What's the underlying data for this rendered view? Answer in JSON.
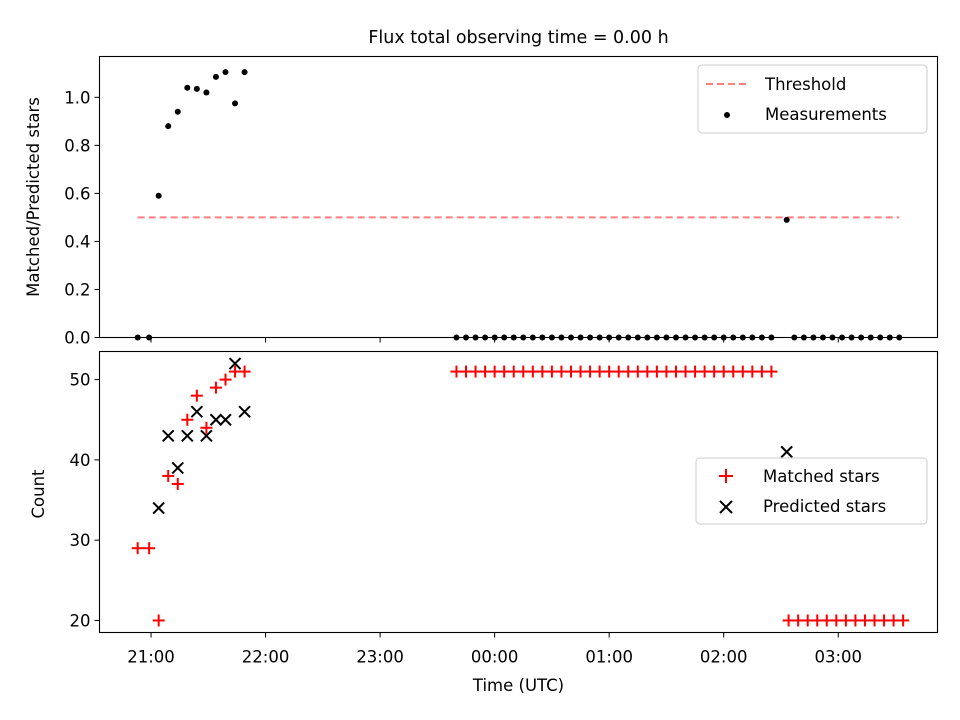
{
  "figure": {
    "title": "Flux total observing time = 0.00 h"
  },
  "chart_data": [
    {
      "type": "scatter",
      "panel": "top",
      "ylabel": "Matched/Predicted stars",
      "ylim": [
        0,
        1.17
      ],
      "yticks": [
        0.0,
        0.2,
        0.4,
        0.6,
        0.8,
        1.0
      ],
      "ytick_labels": [
        "0.0",
        "0.2",
        "0.4",
        "0.6",
        "0.8",
        "1.0"
      ],
      "legend_position": "top-right",
      "threshold": {
        "name": "Threshold",
        "value": 0.5,
        "x_start": "20:53",
        "x_end": "03:32",
        "color": "#ff7f7f",
        "style": "dashed"
      },
      "series": [
        {
          "name": "Measurements",
          "color": "#000000",
          "marker": "dot",
          "points": [
            [
              "20:53",
              0.0
            ],
            [
              "20:59",
              0.0
            ],
            [
              "21:04",
              0.59
            ],
            [
              "21:09",
              0.88
            ],
            [
              "21:14",
              0.94
            ],
            [
              "21:19",
              1.04
            ],
            [
              "21:24",
              1.035
            ],
            [
              "21:29",
              1.02
            ],
            [
              "21:34",
              1.085
            ],
            [
              "21:39",
              1.105
            ],
            [
              "21:44",
              0.975
            ],
            [
              "21:49",
              1.105
            ],
            [
              "23:40",
              0.0
            ],
            [
              "23:45",
              0.0
            ],
            [
              "23:50",
              0.0
            ],
            [
              "23:55",
              0.0
            ],
            [
              "00:00",
              0.0
            ],
            [
              "00:05",
              0.0
            ],
            [
              "00:10",
              0.0
            ],
            [
              "00:15",
              0.0
            ],
            [
              "00:20",
              0.0
            ],
            [
              "00:25",
              0.0
            ],
            [
              "00:30",
              0.0
            ],
            [
              "00:35",
              0.0
            ],
            [
              "00:40",
              0.0
            ],
            [
              "00:45",
              0.0
            ],
            [
              "00:50",
              0.0
            ],
            [
              "00:55",
              0.0
            ],
            [
              "01:00",
              0.0
            ],
            [
              "01:05",
              0.0
            ],
            [
              "01:10",
              0.0
            ],
            [
              "01:15",
              0.0
            ],
            [
              "01:20",
              0.0
            ],
            [
              "01:25",
              0.0
            ],
            [
              "01:30",
              0.0
            ],
            [
              "01:35",
              0.0
            ],
            [
              "01:40",
              0.0
            ],
            [
              "01:45",
              0.0
            ],
            [
              "01:50",
              0.0
            ],
            [
              "01:55",
              0.0
            ],
            [
              "02:00",
              0.0
            ],
            [
              "02:05",
              0.0
            ],
            [
              "02:10",
              0.0
            ],
            [
              "02:15",
              0.0
            ],
            [
              "02:20",
              0.0
            ],
            [
              "02:25",
              0.0
            ],
            [
              "02:33",
              0.49
            ],
            [
              "02:37",
              0.0
            ],
            [
              "02:42",
              0.0
            ],
            [
              "02:47",
              0.0
            ],
            [
              "02:52",
              0.0
            ],
            [
              "02:57",
              0.0
            ],
            [
              "03:02",
              0.0
            ],
            [
              "03:07",
              0.0
            ],
            [
              "03:12",
              0.0
            ],
            [
              "03:17",
              0.0
            ],
            [
              "03:22",
              0.0
            ],
            [
              "03:27",
              0.0
            ],
            [
              "03:32",
              0.0
            ]
          ]
        }
      ]
    },
    {
      "type": "scatter",
      "panel": "bottom",
      "xlabel": "Time (UTC)",
      "ylabel": "Count",
      "ylim": [
        18.5,
        53.5
      ],
      "yticks": [
        20,
        30,
        40,
        50
      ],
      "ytick_labels": [
        "20",
        "30",
        "40",
        "50"
      ],
      "xlim": [
        "20:33",
        "03:52"
      ],
      "xticks": [
        "21:00",
        "22:00",
        "23:00",
        "00:00",
        "01:00",
        "02:00",
        "03:00"
      ],
      "xtick_labels": [
        "21:00",
        "22:00",
        "23:00",
        "00:00",
        "01:00",
        "02:00",
        "03:00"
      ],
      "legend_position": "center-right",
      "series": [
        {
          "name": "Matched stars",
          "color": "#ff0000",
          "marker": "plus",
          "points": [
            [
              "20:53",
              29
            ],
            [
              "20:59",
              29
            ],
            [
              "21:04",
              20
            ],
            [
              "21:09",
              38
            ],
            [
              "21:14",
              37
            ],
            [
              "21:19",
              45
            ],
            [
              "21:24",
              48
            ],
            [
              "21:29",
              44
            ],
            [
              "21:34",
              49
            ],
            [
              "21:39",
              50
            ],
            [
              "21:44",
              51
            ],
            [
              "21:49",
              51
            ],
            [
              "23:40",
              51
            ],
            [
              "23:45",
              51
            ],
            [
              "23:50",
              51
            ],
            [
              "23:55",
              51
            ],
            [
              "00:00",
              51
            ],
            [
              "00:05",
              51
            ],
            [
              "00:10",
              51
            ],
            [
              "00:15",
              51
            ],
            [
              "00:20",
              51
            ],
            [
              "00:25",
              51
            ],
            [
              "00:30",
              51
            ],
            [
              "00:35",
              51
            ],
            [
              "00:40",
              51
            ],
            [
              "00:45",
              51
            ],
            [
              "00:50",
              51
            ],
            [
              "00:55",
              51
            ],
            [
              "01:00",
              51
            ],
            [
              "01:05",
              51
            ],
            [
              "01:10",
              51
            ],
            [
              "01:15",
              51
            ],
            [
              "01:20",
              51
            ],
            [
              "01:25",
              51
            ],
            [
              "01:30",
              51
            ],
            [
              "01:35",
              51
            ],
            [
              "01:40",
              51
            ],
            [
              "01:45",
              51
            ],
            [
              "01:50",
              51
            ],
            [
              "01:55",
              51
            ],
            [
              "02:00",
              51
            ],
            [
              "02:05",
              51
            ],
            [
              "02:10",
              51
            ],
            [
              "02:15",
              51
            ],
            [
              "02:20",
              51
            ],
            [
              "02:25",
              51
            ],
            [
              "02:34",
              20
            ],
            [
              "02:39",
              20
            ],
            [
              "02:44",
              20
            ],
            [
              "02:49",
              20
            ],
            [
              "02:54",
              20
            ],
            [
              "02:59",
              20
            ],
            [
              "03:04",
              20
            ],
            [
              "03:09",
              20
            ],
            [
              "03:14",
              20
            ],
            [
              "03:19",
              20
            ],
            [
              "03:24",
              20
            ],
            [
              "03:29",
              20
            ],
            [
              "03:34",
              20
            ]
          ]
        },
        {
          "name": "Predicted stars",
          "color": "#000000",
          "marker": "x",
          "points": [
            [
              "21:04",
              34
            ],
            [
              "21:09",
              43
            ],
            [
              "21:14",
              39
            ],
            [
              "21:19",
              43
            ],
            [
              "21:24",
              46
            ],
            [
              "21:29",
              43
            ],
            [
              "21:34",
              45
            ],
            [
              "21:39",
              45
            ],
            [
              "21:44",
              52
            ],
            [
              "21:49",
              46
            ],
            [
              "02:33",
              41
            ]
          ]
        }
      ]
    }
  ]
}
